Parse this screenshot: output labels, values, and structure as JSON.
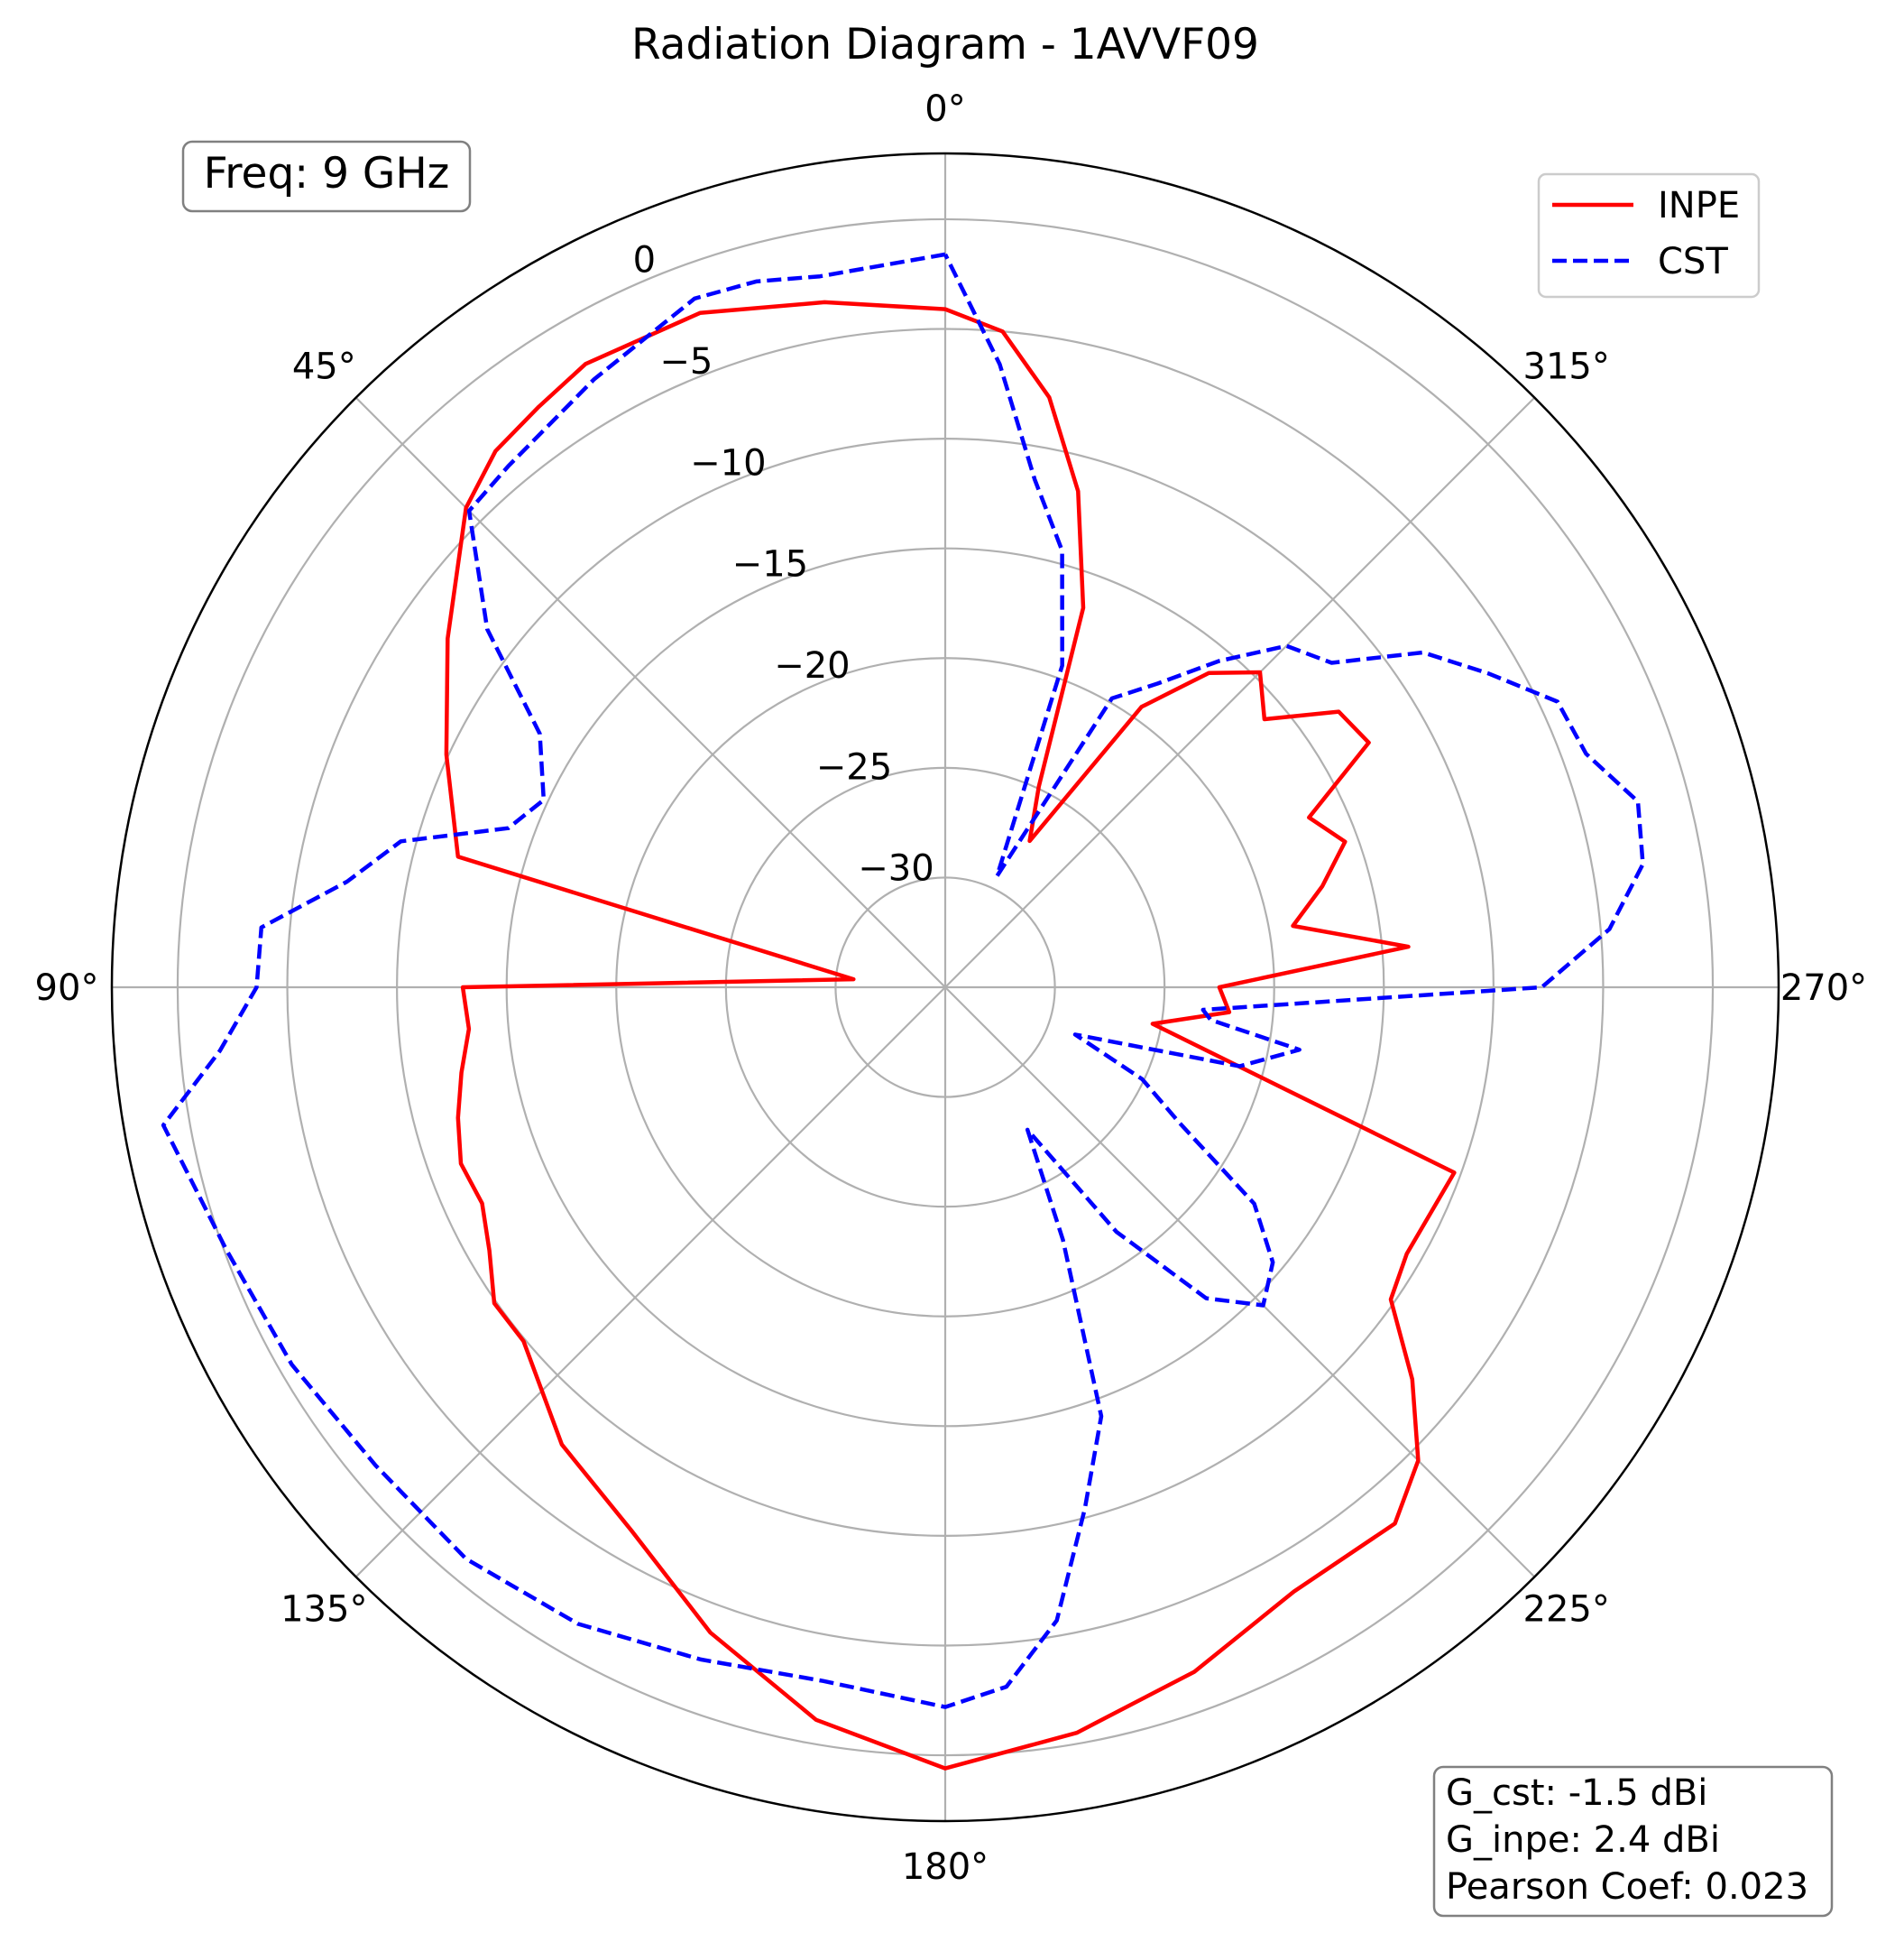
{
  "chart_data": {
    "type": "line",
    "polar": true,
    "title": "Radiation Diagram - 1AVVF09",
    "theta_direction": "counterclockwise",
    "theta_zero": "top",
    "r_range": [
      -35,
      3
    ],
    "r_ticks": [
      -30,
      -25,
      -20,
      -15,
      -10,
      -5,
      0
    ],
    "r_tick_labels": [
      "−30",
      "−25",
      "−20",
      "−15",
      "−10",
      "−5",
      "0"
    ],
    "theta_ticks": [
      0,
      45,
      90,
      135,
      180,
      225,
      270,
      315
    ],
    "theta_tick_labels": [
      "0°",
      "45°",
      "90°",
      "135°",
      "180°",
      "225°",
      "270°",
      "315°"
    ],
    "grid": true,
    "legend": {
      "placement": "top-right",
      "entries": [
        "INPE",
        "CST"
      ]
    },
    "series": [
      {
        "name": "INPE",
        "color": "#ff0000",
        "style": "solid",
        "theta": [
          0,
          10,
          20,
          30,
          35,
          40,
          45,
          55,
          65,
          75,
          85,
          90,
          95,
          100,
          105,
          110,
          115,
          120,
          125,
          130,
          140,
          150,
          160,
          170,
          180,
          190,
          200,
          210,
          220,
          225,
          230,
          235,
          240,
          250,
          260,
          265,
          270,
          275,
          280,
          285,
          290,
          295,
          300,
          305,
          310,
          315,
          320,
          325,
          330,
          335,
          340,
          345,
          350,
          355,
          360
        ],
        "values": [
          -4.1,
          -3.3,
          -2.3,
          -2.2,
          -2.7,
          -3.1,
          -4.1,
          -7.3,
          -9.9,
          -12.0,
          -30.8,
          -13.0,
          -13.2,
          -12.6,
          -12.0,
          -11.5,
          -11.7,
          -11.0,
          -9.9,
          -9.9,
          -7.8,
          -6.4,
          -3.7,
          -1.1,
          0.6,
          -0.5,
          -1.8,
          -3.2,
          -3.1,
          -4.5,
          -7.2,
          -10.2,
          -10.7,
          -10.3,
          -25.4,
          -22.0,
          -22.5,
          -13.8,
          -18.9,
          -17.2,
          -15.6,
          -16.7,
          -12.7,
          -13.1,
          -16.0,
          -14.7,
          -16.3,
          -19.4,
          -27.3,
          -24.9,
          -16.6,
          -11.6,
          -7.7,
          -5.0,
          -4.1
        ]
      },
      {
        "name": "CST",
        "color": "#0000ff",
        "style": "dashed",
        "theta": [
          0,
          10,
          15,
          20,
          30,
          40,
          45,
          52,
          58,
          65,
          70,
          75,
          80,
          85,
          90,
          95,
          100,
          110,
          120,
          130,
          140,
          150,
          160,
          170,
          180,
          185,
          190,
          195,
          200,
          205,
          210,
          215,
          220,
          225,
          230,
          235,
          240,
          245,
          250,
          255,
          260,
          263,
          265,
          270,
          275,
          280,
          285,
          290,
          295,
          300,
          305,
          310,
          315,
          320,
          325,
          330,
          335,
          340,
          345,
          350,
          355,
          360
        ],
        "values": [
          -1.6,
          -2.1,
          -1.7,
          -1.6,
          -3.0,
          -4.0,
          -4.3,
          -8.5,
          -13.2,
          -14.8,
          -13.8,
          -9.3,
          -7.3,
          -3.7,
          -3.6,
          -1.8,
          1.2,
          -0.1,
          -0.6,
          -1.1,
          -1.0,
          -1.5,
          -2.4,
          -2.9,
          -2.2,
          -3.0,
          -5.7,
          -10.4,
          -14.2,
          -22.3,
          -27.5,
          -21.4,
          -16.5,
          -14.5,
          -15.5,
          -17.8,
          -22.7,
          -25.1,
          -28.7,
          -21.1,
          -18.6,
          -22.8,
          -23.2,
          -7.8,
          -4.6,
          -2.7,
          -2.3,
          -3.9,
          -4.2,
          -6.4,
          -8.4,
          -12.0,
          -13.0,
          -15.6,
          -18.1,
          -19.8,
          -29.4,
          -19.4,
          -14.4,
          -11.5,
          -6.5,
          -1.6
        ]
      }
    ],
    "annotations": {
      "freq": "Freq: 9 GHz",
      "stats": [
        "G_cst: -1.5 dBi",
        "G_inpe: 2.4 dBi",
        "Pearson Coef: 0.023"
      ]
    }
  }
}
